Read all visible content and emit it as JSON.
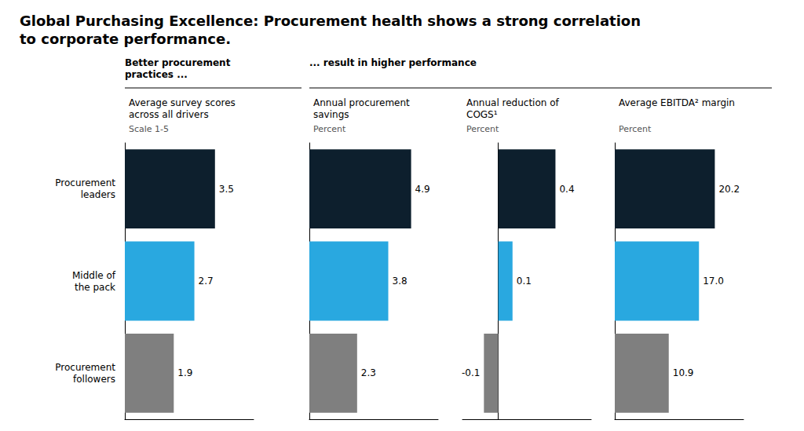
{
  "title": "Global Purchasing Excellence: Procurement health shows a strong correlation\nto corporate performance.",
  "annotations": [
    "Better procurement\npractices ...",
    "... result in higher performance"
  ],
  "chart_data": [
    {
      "type": "bar",
      "orientation": "horizontal",
      "title": "Average survey scores\nacross all drivers",
      "subtitle": "Scale 1-5",
      "categories": [
        "Procurement\nleaders",
        "Middle of\nthe pack",
        "Procurement\nfollowers"
      ],
      "values": [
        3.5,
        2.7,
        1.9
      ],
      "colors": [
        "#0d1f2d",
        "#29a8e0",
        "#7f7f7f"
      ],
      "xlim": [
        0,
        5.0
      ],
      "grid": false,
      "data_labels": true,
      "tick_labels": "y"
    },
    {
      "type": "bar",
      "orientation": "horizontal",
      "title": "Annual procurement\nsavings",
      "subtitle": "Percent",
      "categories": [
        "Procurement\nleaders",
        "Middle of\nthe pack",
        "Procurement\nfollowers"
      ],
      "values": [
        4.9,
        3.8,
        2.3
      ],
      "colors": [
        "#0d1f2d",
        "#29a8e0",
        "#7f7f7f"
      ],
      "xlim": [
        0,
        6.2
      ],
      "grid": false,
      "data_labels": true,
      "tick_labels": false
    },
    {
      "type": "bar",
      "orientation": "horizontal",
      "title": "Annual reduction of\nCOGS¹",
      "subtitle": "Percent",
      "categories": [
        "Procurement\nleaders",
        "Middle of\nthe pack",
        "Procurement\nfollowers"
      ],
      "values": [
        0.4,
        0.1,
        -0.1
      ],
      "colors": [
        "#0d1f2d",
        "#29a8e0",
        "#7f7f7f"
      ],
      "xlim": [
        -0.25,
        0.65
      ],
      "grid": false,
      "data_labels": true,
      "tick_labels": false
    },
    {
      "type": "bar",
      "orientation": "horizontal",
      "title": "Average EBITDA² margin",
      "subtitle": "Percent",
      "categories": [
        "Procurement\nleaders",
        "Middle of\nthe pack",
        "Procurement\nfollowers"
      ],
      "values": [
        20.2,
        17.0,
        10.9
      ],
      "value_labels": [
        "20.2",
        "17.0",
        "10.9"
      ],
      "colors": [
        "#0d1f2d",
        "#29a8e0",
        "#7f7f7f"
      ],
      "xlim": [
        0,
        26.0
      ],
      "grid": false,
      "data_labels": true,
      "tick_labels": false
    }
  ]
}
